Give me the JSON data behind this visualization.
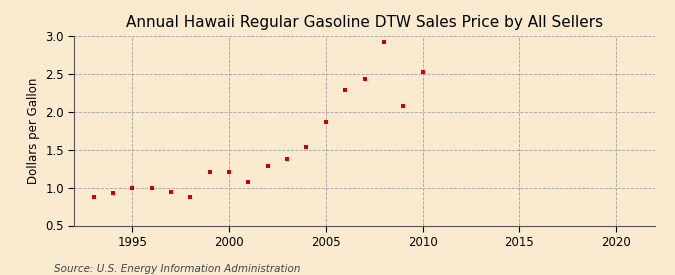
{
  "title": "Annual Hawaii Regular Gasoline DTW Sales Price by All Sellers",
  "ylabel": "Dollars per Gallon",
  "source": "Source: U.S. Energy Information Administration",
  "years": [
    1993,
    1994,
    1995,
    1996,
    1997,
    1998,
    1999,
    2000,
    2001,
    2002,
    2003,
    2004,
    2005,
    2006,
    2007,
    2008,
    2009,
    2010
  ],
  "values": [
    0.88,
    0.93,
    1.0,
    1.0,
    0.94,
    0.88,
    1.2,
    1.21,
    1.07,
    1.28,
    1.37,
    1.54,
    1.87,
    2.29,
    2.43,
    2.92,
    2.07,
    2.52
  ],
  "marker_color": "#cc0000",
  "bg_color": "#faebd0",
  "grid_color": "#999999",
  "xlim": [
    1992,
    2022
  ],
  "ylim": [
    0.5,
    3.0
  ],
  "xticks": [
    1995,
    2000,
    2005,
    2010,
    2015,
    2020
  ],
  "yticks": [
    0.5,
    1.0,
    1.5,
    2.0,
    2.5,
    3.0
  ],
  "title_fontsize": 11,
  "label_fontsize": 8.5,
  "tick_fontsize": 8.5,
  "source_fontsize": 7.5
}
